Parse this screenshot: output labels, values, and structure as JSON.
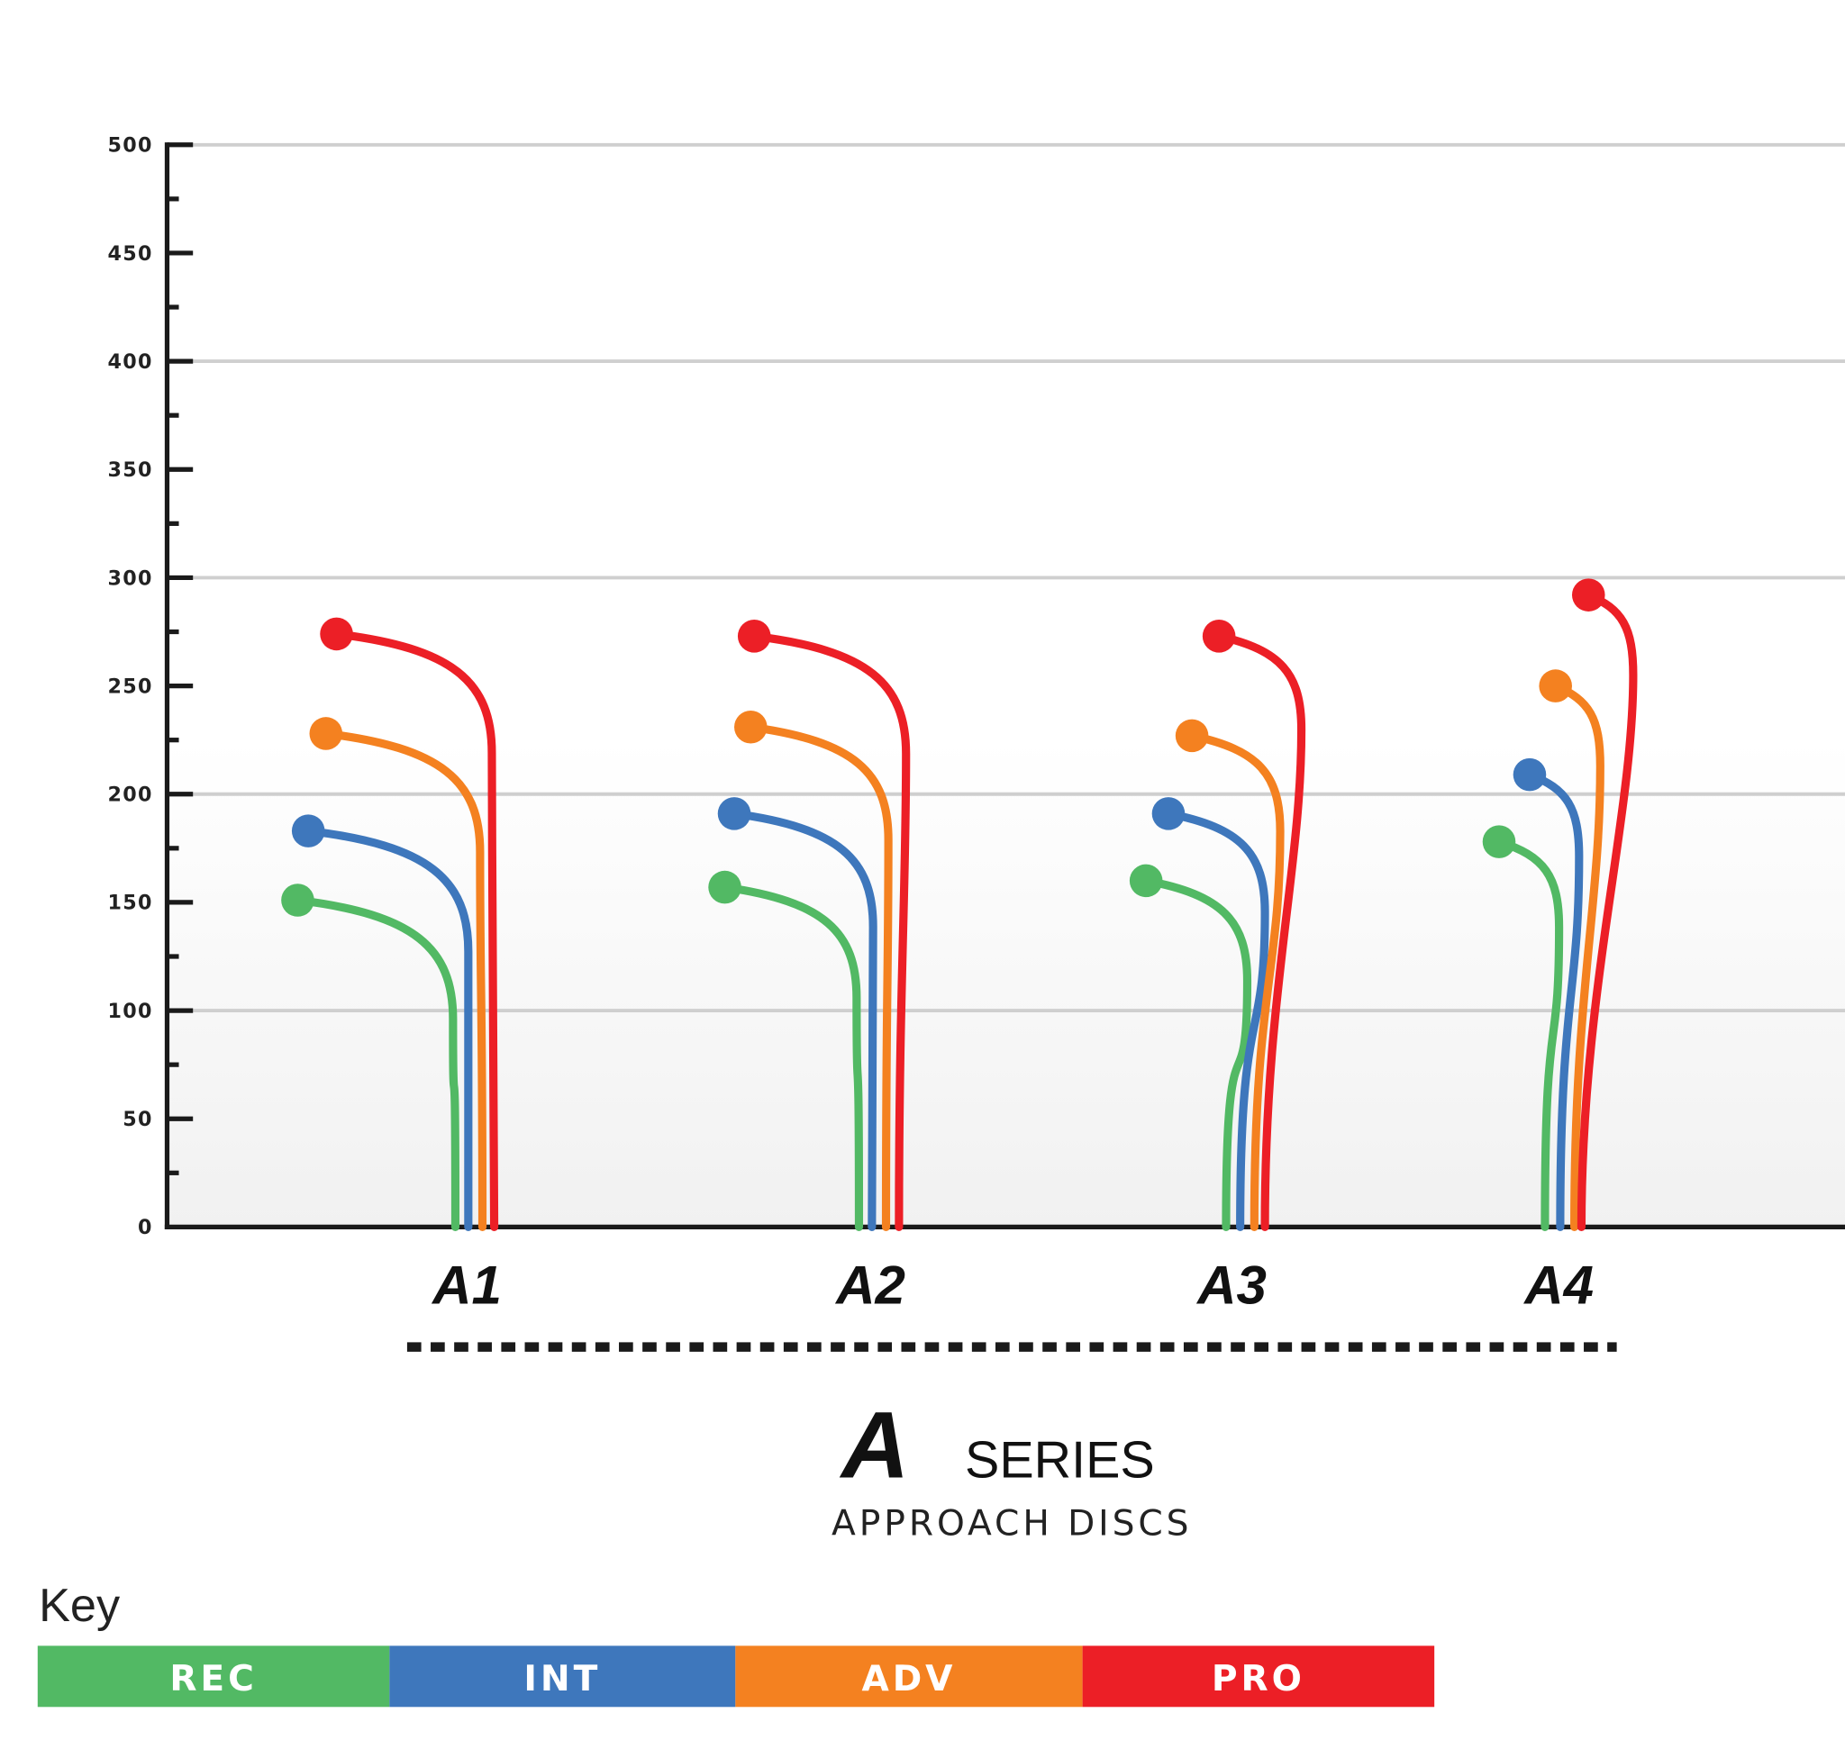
{
  "chart_data": {
    "type": "line",
    "title": "SERIES",
    "title_logo_letter": "A",
    "subtitle": "APPROACH DISCS",
    "xlabel": "",
    "ylabel": "",
    "ylim": [
      0,
      500
    ],
    "yticks": [
      0,
      50,
      100,
      150,
      200,
      250,
      300,
      350,
      400,
      450,
      500
    ],
    "grid": true,
    "gridlines": [
      100,
      200,
      300,
      400,
      500
    ],
    "categories": [
      "A1",
      "A2",
      "A3",
      "A4"
    ],
    "series": [
      {
        "name": "REC",
        "color": "#52b964",
        "values": [
          151,
          157,
          160,
          178
        ]
      },
      {
        "name": "INT",
        "color": "#3e77bc",
        "values": [
          183,
          191,
          191,
          209
        ]
      },
      {
        "name": "ADV",
        "color": "#f48120",
        "values": [
          228,
          231,
          227,
          250
        ]
      },
      {
        "name": "PRO",
        "color": "#ec1f26",
        "values": [
          274,
          273,
          273,
          292
        ]
      }
    ],
    "legend": {
      "title": "Key",
      "placement": "bottom-left"
    }
  }
}
